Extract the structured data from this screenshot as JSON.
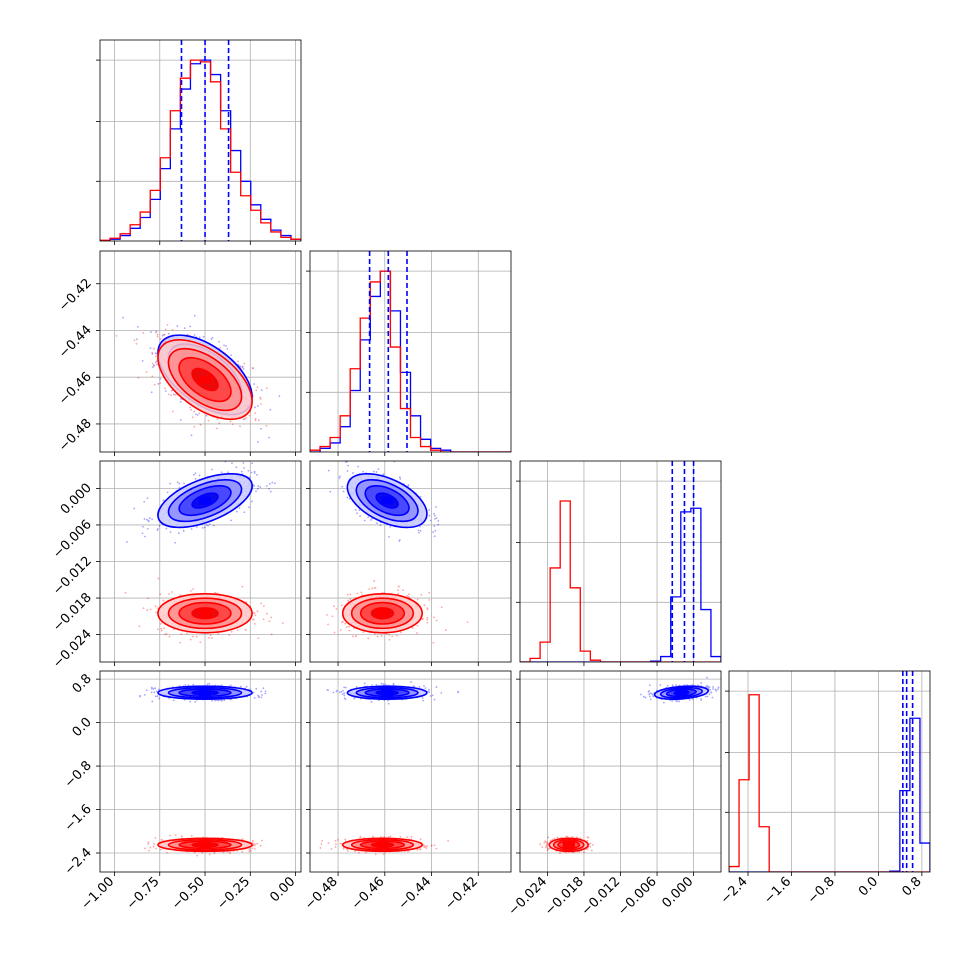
{
  "chart_data": {
    "type": "corner",
    "colors": {
      "series_a": "#0000ff",
      "series_b": "#ff0000"
    },
    "grid": true,
    "legend": "none",
    "series": [
      {
        "color_key": "series_a",
        "means": [
          -0.5,
          -0.459,
          -0.002,
          0.55
        ],
        "stds": [
          0.13,
          0.0085,
          0.0022,
          0.06
        ],
        "quantile_lines": [
          [
            -0.63,
            -0.5,
            -0.37
          ],
          [
            -0.4665,
            -0.4585,
            -0.4505
          ],
          [
            -0.0035,
            -0.0015,
            0.0
          ],
          [
            0.45,
            0.52,
            0.63
          ]
        ]
      },
      {
        "color_key": "series_b",
        "means": [
          -0.5,
          -0.461,
          -0.0205,
          -2.25
        ],
        "stds": [
          0.13,
          0.0085,
          0.0016,
          0.06
        ]
      }
    ],
    "axes": [
      {
        "range": [
          -1.08,
          0.03
        ],
        "ticks": [
          -1.0,
          -0.75,
          -0.5,
          -0.25,
          0.0
        ],
        "tick_labels": [
          "−1.00",
          "−0.75",
          "−0.50",
          "−0.25",
          "0.00"
        ]
      },
      {
        "range": [
          -0.492,
          -0.406
        ],
        "ticks": [
          -0.48,
          -0.46,
          -0.44,
          -0.42
        ],
        "tick_labels": [
          "−0.48",
          "−0.46",
          "−0.44",
          "−0.42"
        ]
      },
      {
        "range": [
          -0.0285,
          0.0045
        ],
        "ticks": [
          -0.024,
          -0.018,
          -0.012,
          -0.006,
          0.0
        ],
        "tick_labels": [
          "−0.024",
          "−0.018",
          "−0.012",
          "−0.006",
          "0.000"
        ]
      },
      {
        "range": [
          -2.75,
          0.95
        ],
        "ticks": [
          -2.4,
          -1.6,
          -0.8,
          0.0,
          0.8
        ],
        "tick_labels": [
          "−2.4",
          "−1.6",
          "−0.8",
          "0.0",
          "0.8"
        ]
      }
    ],
    "histograms": [
      {
        "bins": [
          -1.08,
          -1.0245,
          -0.969,
          -0.9135,
          -0.858,
          -0.8025,
          -0.747,
          -0.6915,
          -0.636,
          -0.5805,
          -0.525,
          -0.4695,
          -0.414,
          -0.3585,
          -0.303,
          -0.2475,
          -0.192,
          -0.1365,
          -0.081,
          -0.0255,
          0.03
        ],
        "series_a": [
          0.002,
          0.01,
          0.03,
          0.07,
          0.13,
          0.23,
          0.4,
          0.62,
          0.84,
          0.98,
          1.0,
          0.92,
          0.72,
          0.5,
          0.33,
          0.2,
          0.12,
          0.06,
          0.03,
          0.01
        ],
        "series_b": [
          0.004,
          0.015,
          0.04,
          0.09,
          0.16,
          0.28,
          0.46,
          0.72,
          0.9,
          1.0,
          0.99,
          0.88,
          0.62,
          0.38,
          0.25,
          0.17,
          0.1,
          0.05,
          0.02,
          0.01
        ]
      },
      {
        "bins": [
          -0.492,
          -0.4877,
          -0.4834,
          -0.4791,
          -0.4748,
          -0.4705,
          -0.4662,
          -0.4619,
          -0.4576,
          -0.4533,
          -0.449,
          -0.4447,
          -0.4404,
          -0.4361,
          -0.4318,
          -0.4275,
          -0.4232,
          -0.4189,
          -0.4146,
          -0.4103,
          -0.406
        ],
        "series_a": [
          0.0,
          0.02,
          0.05,
          0.14,
          0.34,
          0.62,
          0.86,
          1.0,
          0.78,
          0.44,
          0.2,
          0.07,
          0.02,
          0.01,
          0.0,
          0.0,
          0.0,
          0.0,
          0.0,
          0.0
        ],
        "series_b": [
          0.01,
          0.03,
          0.08,
          0.2,
          0.46,
          0.74,
          0.94,
          1.0,
          0.58,
          0.24,
          0.08,
          0.03,
          0.01,
          0.0,
          0.0,
          0.0,
          0.0,
          0.0,
          0.0,
          0.0
        ]
      },
      {
        "bins": [
          -0.0285,
          -0.02685,
          -0.0252,
          -0.02355,
          -0.0219,
          -0.02025,
          -0.0186,
          -0.01695,
          -0.0153,
          -0.01365,
          -0.012,
          -0.01035,
          -0.0087,
          -0.00705,
          -0.0054,
          -0.00375,
          -0.0021,
          -0.00045,
          0.0012,
          0.00285,
          0.0045
        ],
        "series_a": [
          0.0,
          0.0,
          0.0,
          0.0,
          0.0,
          0.0,
          0.0,
          0.0,
          0.0,
          0.0,
          0.0,
          0.0,
          0.0,
          0.005,
          0.03,
          0.36,
          0.83,
          0.85,
          0.29,
          0.03
        ],
        "series_b": [
          0.0,
          0.02,
          0.11,
          0.52,
          0.89,
          0.41,
          0.06,
          0.01,
          0.0,
          0.0,
          0.0,
          0.0,
          0.0,
          0.0,
          0.0,
          0.0,
          0.0,
          0.0,
          0.0,
          0.0
        ]
      },
      {
        "bins": [
          -2.75,
          -2.565,
          -2.38,
          -2.195,
          -2.01,
          -1.825,
          -1.64,
          -1.455,
          -1.27,
          -1.085,
          -0.9,
          -0.715,
          -0.53,
          -0.345,
          -0.16,
          0.025,
          0.21,
          0.395,
          0.58,
          0.765,
          0.95
        ],
        "series_a": [
          0.0,
          0.0,
          0.0,
          0.0,
          0.0,
          0.0,
          0.0,
          0.0,
          0.0,
          0.0,
          0.0,
          0.0,
          0.0,
          0.0,
          0.0,
          0.0,
          0.005,
          0.45,
          0.85,
          0.16
        ],
        "series_b": [
          0.03,
          0.51,
          0.98,
          0.25,
          0.0,
          0.0,
          0.0,
          0.0,
          0.0,
          0.0,
          0.0,
          0.0,
          0.0,
          0.0,
          0.0,
          0.0,
          0.0,
          0.0,
          0.0,
          0.0
        ]
      }
    ],
    "pair_correlations": [
      {
        "row": 1,
        "col": 0,
        "series_a": -0.55,
        "series_b": -0.55
      },
      {
        "row": 2,
        "col": 0,
        "series_a": 0.55,
        "series_b": 0.0
      },
      {
        "row": 2,
        "col": 1,
        "series_a": -0.5,
        "series_b": 0.0
      },
      {
        "row": 3,
        "col": 0,
        "series_a": 0.0,
        "series_b": 0.0
      },
      {
        "row": 3,
        "col": 1,
        "series_a": 0.0,
        "series_b": 0.0
      },
      {
        "row": 3,
        "col": 2,
        "series_a": 0.3,
        "series_b": 0.0
      }
    ]
  }
}
